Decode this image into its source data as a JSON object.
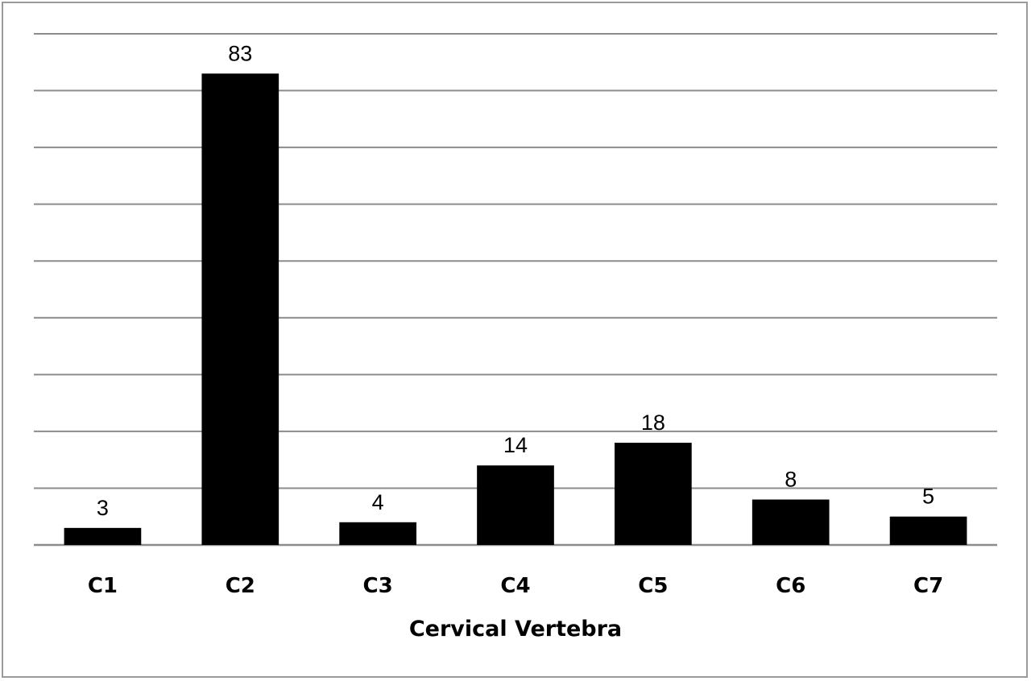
{
  "chart_data": {
    "type": "bar",
    "title": "",
    "xlabel": "Cervical Vertebra",
    "ylabel": "",
    "categories": [
      "C1",
      "C2",
      "C3",
      "C4",
      "C5",
      "C6",
      "C7"
    ],
    "values": [
      3,
      83,
      4,
      14,
      18,
      8,
      5
    ],
    "ylim": [
      0,
      90
    ],
    "grid": true,
    "legend": "none",
    "colors": {
      "bar": "#000000",
      "grid": "#8c8c8c",
      "border": "#9a9a9a"
    }
  }
}
